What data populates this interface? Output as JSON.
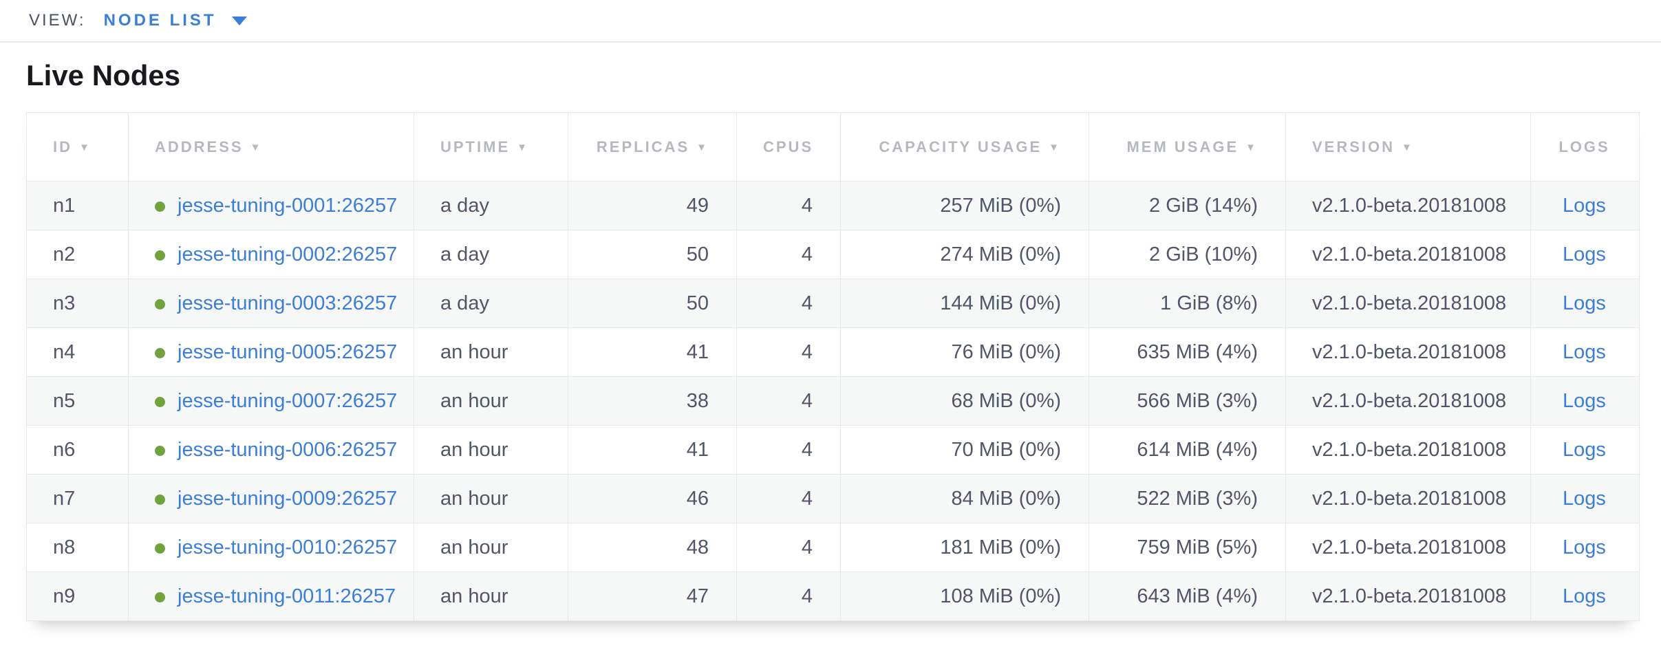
{
  "view_bar": {
    "label": "VIEW:",
    "selected": "NODE LIST",
    "caret_icon": "▾"
  },
  "page": {
    "title": "Live Nodes"
  },
  "colors": {
    "link_blue": "#3b7ddd",
    "status_healthy_green": "#6fa43d",
    "header_text_gray": "#b5b8bd",
    "cell_text": "#4e5668",
    "row_alt_bg": "#f6f7f7",
    "border": "#e7e8e9"
  },
  "table": {
    "sort_icon": "▼",
    "columns": [
      {
        "key": "id",
        "label": "ID",
        "sortable": true,
        "align": "left"
      },
      {
        "key": "address",
        "label": "ADDRESS",
        "sortable": true,
        "align": "left"
      },
      {
        "key": "uptime",
        "label": "UPTIME",
        "sortable": true,
        "align": "left"
      },
      {
        "key": "replicas",
        "label": "REPLICAS",
        "sortable": true,
        "align": "right"
      },
      {
        "key": "cpus",
        "label": "CPUS",
        "sortable": false,
        "align": "right"
      },
      {
        "key": "capacity",
        "label": "CAPACITY USAGE",
        "sortable": true,
        "align": "right"
      },
      {
        "key": "mem",
        "label": "MEM USAGE",
        "sortable": true,
        "align": "right"
      },
      {
        "key": "version",
        "label": "VERSION",
        "sortable": true,
        "align": "left"
      },
      {
        "key": "logs",
        "label": "LOGS",
        "sortable": false,
        "align": "center"
      }
    ],
    "rows": [
      {
        "id": "n1",
        "status": "healthy",
        "address": "jesse-tuning-0001:26257",
        "uptime": "a day",
        "replicas": "49",
        "cpus": "4",
        "capacity": "257 MiB (0%)",
        "mem": "2 GiB (14%)",
        "version": "v2.1.0-beta.20181008",
        "logs": "Logs"
      },
      {
        "id": "n2",
        "status": "healthy",
        "address": "jesse-tuning-0002:26257",
        "uptime": "a day",
        "replicas": "50",
        "cpus": "4",
        "capacity": "274 MiB (0%)",
        "mem": "2 GiB (10%)",
        "version": "v2.1.0-beta.20181008",
        "logs": "Logs"
      },
      {
        "id": "n3",
        "status": "healthy",
        "address": "jesse-tuning-0003:26257",
        "uptime": "a day",
        "replicas": "50",
        "cpus": "4",
        "capacity": "144 MiB (0%)",
        "mem": "1 GiB (8%)",
        "version": "v2.1.0-beta.20181008",
        "logs": "Logs"
      },
      {
        "id": "n4",
        "status": "healthy",
        "address": "jesse-tuning-0005:26257",
        "uptime": "an hour",
        "replicas": "41",
        "cpus": "4",
        "capacity": "76 MiB (0%)",
        "mem": "635 MiB (4%)",
        "version": "v2.1.0-beta.20181008",
        "logs": "Logs"
      },
      {
        "id": "n5",
        "status": "healthy",
        "address": "jesse-tuning-0007:26257",
        "uptime": "an hour",
        "replicas": "38",
        "cpus": "4",
        "capacity": "68 MiB (0%)",
        "mem": "566 MiB (3%)",
        "version": "v2.1.0-beta.20181008",
        "logs": "Logs"
      },
      {
        "id": "n6",
        "status": "healthy",
        "address": "jesse-tuning-0006:26257",
        "uptime": "an hour",
        "replicas": "41",
        "cpus": "4",
        "capacity": "70 MiB (0%)",
        "mem": "614 MiB (4%)",
        "version": "v2.1.0-beta.20181008",
        "logs": "Logs"
      },
      {
        "id": "n7",
        "status": "healthy",
        "address": "jesse-tuning-0009:26257",
        "uptime": "an hour",
        "replicas": "46",
        "cpus": "4",
        "capacity": "84 MiB (0%)",
        "mem": "522 MiB (3%)",
        "version": "v2.1.0-beta.20181008",
        "logs": "Logs"
      },
      {
        "id": "n8",
        "status": "healthy",
        "address": "jesse-tuning-0010:26257",
        "uptime": "an hour",
        "replicas": "48",
        "cpus": "4",
        "capacity": "181 MiB (0%)",
        "mem": "759 MiB (5%)",
        "version": "v2.1.0-beta.20181008",
        "logs": "Logs"
      },
      {
        "id": "n9",
        "status": "healthy",
        "address": "jesse-tuning-0011:26257",
        "uptime": "an hour",
        "replicas": "47",
        "cpus": "4",
        "capacity": "108 MiB (0%)",
        "mem": "643 MiB (4%)",
        "version": "v2.1.0-beta.20181008",
        "logs": "Logs"
      }
    ]
  }
}
